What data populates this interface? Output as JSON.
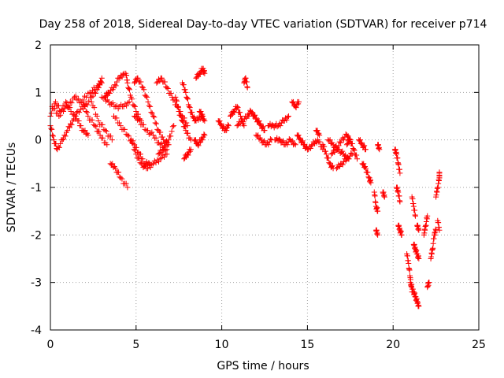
{
  "chart_data": {
    "type": "scatter",
    "title": "Day 258 of 2018, Sidereal Day-to-day VTEC variation (SDTVAR) for receiver p714",
    "xlabel": "GPS time / hours",
    "ylabel": "SDTVAR / TECUs",
    "xlim": [
      0,
      25
    ],
    "ylim": [
      -4,
      2
    ],
    "xticks": [
      0,
      5,
      10,
      15,
      20,
      25
    ],
    "yticks": [
      -4,
      -3,
      -2,
      -1,
      0,
      1,
      2
    ],
    "grid": true,
    "marker": "+",
    "color": "#ff0000",
    "series": [
      {
        "name": "p714",
        "tracks": [
          [
            [
              0.0,
              0.5
            ],
            [
              0.3,
              0.8
            ],
            [
              0.6,
              0.6
            ],
            [
              1.0,
              0.7
            ],
            [
              1.4,
              0.9
            ],
            [
              1.8,
              0.8
            ],
            [
              2.3,
              1.0
            ],
            [
              2.7,
              1.1
            ],
            [
              3.0,
              1.2
            ]
          ],
          [
            [
              0.0,
              0.3
            ],
            [
              0.2,
              0.0
            ],
            [
              0.4,
              -0.2
            ],
            [
              0.7,
              0.0
            ],
            [
              1.0,
              0.2
            ],
            [
              1.3,
              0.4
            ],
            [
              1.6,
              0.6
            ],
            [
              2.0,
              0.7
            ],
            [
              2.4,
              0.9
            ],
            [
              2.8,
              1.1
            ],
            [
              3.0,
              1.3
            ]
          ],
          [
            [
              0.1,
              0.7
            ],
            [
              0.5,
              0.5
            ],
            [
              0.9,
              0.8
            ],
            [
              1.2,
              0.6
            ],
            [
              1.6,
              0.4
            ],
            [
              1.9,
              0.2
            ],
            [
              2.2,
              0.1
            ]
          ],
          [
            [
              1.9,
              0.8
            ],
            [
              2.2,
              0.5
            ],
            [
              2.6,
              0.3
            ],
            [
              2.9,
              0.1
            ],
            [
              3.3,
              -0.1
            ]
          ],
          [
            [
              2.4,
              0.8
            ],
            [
              2.8,
              0.4
            ],
            [
              3.2,
              0.2
            ],
            [
              3.6,
              0.0
            ]
          ],
          [
            [
              3.0,
              0.9
            ],
            [
              3.4,
              0.8
            ],
            [
              3.8,
              0.7
            ],
            [
              4.2,
              0.7
            ],
            [
              4.6,
              0.8
            ]
          ],
          [
            [
              3.2,
              0.9
            ],
            [
              3.4,
              1.0
            ],
            [
              3.7,
              1.1
            ],
            [
              4.0,
              1.3
            ],
            [
              4.3,
              1.4
            ]
          ],
          [
            [
              3.5,
              -0.5
            ],
            [
              3.8,
              -0.6
            ],
            [
              4.1,
              -0.8
            ],
            [
              4.5,
              -1.0
            ]
          ],
          [
            [
              3.7,
              0.5
            ],
            [
              4.1,
              0.3
            ],
            [
              4.5,
              0.1
            ],
            [
              4.9,
              -0.1
            ],
            [
              5.2,
              -0.3
            ],
            [
              5.5,
              -0.5
            ],
            [
              5.8,
              -0.5
            ]
          ],
          [
            [
              4.4,
              1.4
            ],
            [
              4.5,
              1.2
            ],
            [
              4.7,
              0.9
            ],
            [
              5.0,
              0.6
            ],
            [
              5.3,
              0.4
            ]
          ],
          [
            [
              4.7,
              0.0
            ],
            [
              5.0,
              -0.3
            ],
            [
              5.3,
              -0.5
            ],
            [
              5.6,
              -0.6
            ],
            [
              6.0,
              -0.5
            ],
            [
              6.4,
              -0.4
            ],
            [
              6.8,
              -0.3
            ]
          ],
          [
            [
              4.9,
              1.2
            ],
            [
              5.1,
              1.3
            ],
            [
              5.4,
              1.1
            ],
            [
              5.7,
              0.8
            ],
            [
              6.0,
              0.5
            ],
            [
              6.3,
              0.2
            ],
            [
              6.6,
              0.0
            ],
            [
              6.9,
              -0.1
            ]
          ],
          [
            [
              4.9,
              0.5
            ],
            [
              5.2,
              0.4
            ],
            [
              5.6,
              0.2
            ],
            [
              6.0,
              0.1
            ],
            [
              6.4,
              -0.1
            ],
            [
              6.8,
              -0.2
            ]
          ],
          [
            [
              6.2,
              1.2
            ],
            [
              6.5,
              1.3
            ],
            [
              6.8,
              1.1
            ],
            [
              7.1,
              0.9
            ],
            [
              7.4,
              0.7
            ],
            [
              7.7,
              0.5
            ],
            [
              8.0,
              0.3
            ]
          ],
          [
            [
              6.3,
              -0.3
            ],
            [
              6.6,
              -0.2
            ],
            [
              6.9,
              0.0
            ],
            [
              7.2,
              0.3
            ]
          ],
          [
            [
              7.3,
              0.9
            ],
            [
              7.5,
              0.6
            ],
            [
              7.7,
              0.4
            ],
            [
              7.9,
              0.2
            ],
            [
              8.2,
              0.0
            ]
          ],
          [
            [
              7.7,
              1.2
            ],
            [
              7.9,
              1.0
            ],
            [
              8.1,
              0.7
            ],
            [
              8.3,
              0.5
            ],
            [
              8.5,
              0.4
            ],
            [
              8.8,
              0.5
            ],
            [
              9.0,
              0.4
            ]
          ],
          [
            [
              7.8,
              -0.4
            ],
            [
              8.0,
              -0.3
            ],
            [
              8.2,
              -0.2
            ]
          ],
          [
            [
              8.5,
              1.3
            ],
            [
              8.7,
              1.4
            ],
            [
              8.9,
              1.5
            ],
            [
              9.0,
              1.4
            ]
          ],
          [
            [
              8.4,
              0.0
            ],
            [
              8.6,
              -0.1
            ],
            [
              8.8,
              0.0
            ],
            [
              9.0,
              0.1
            ]
          ],
          [
            [
              8.7,
              0.6
            ],
            [
              8.9,
              0.5
            ]
          ],
          [
            [
              9.8,
              0.4
            ],
            [
              10.0,
              0.3
            ],
            [
              10.2,
              0.2
            ],
            [
              10.4,
              0.3
            ]
          ],
          [
            [
              10.5,
              0.5
            ],
            [
              10.7,
              0.6
            ],
            [
              10.9,
              0.7
            ],
            [
              11.1,
              0.5
            ],
            [
              11.3,
              0.3
            ]
          ],
          [
            [
              10.9,
              0.3
            ],
            [
              11.2,
              0.4
            ],
            [
              11.5,
              0.5
            ],
            [
              11.7,
              0.6
            ],
            [
              11.9,
              0.5
            ],
            [
              12.1,
              0.4
            ],
            [
              12.3,
              0.3
            ],
            [
              12.5,
              0.2
            ]
          ],
          [
            [
              11.3,
              1.2
            ],
            [
              11.4,
              1.3
            ],
            [
              11.5,
              1.1
            ]
          ],
          [
            [
              12.0,
              0.1
            ],
            [
              12.3,
              0.0
            ],
            [
              12.6,
              -0.1
            ],
            [
              12.9,
              0.0
            ]
          ],
          [
            [
              12.7,
              0.3
            ],
            [
              13.0,
              0.3
            ],
            [
              13.3,
              0.3
            ],
            [
              13.6,
              0.4
            ],
            [
              13.9,
              0.5
            ]
          ],
          [
            [
              13.1,
              0.0
            ],
            [
              13.4,
              0.0
            ],
            [
              13.7,
              -0.1
            ],
            [
              14.0,
              0.0
            ],
            [
              14.3,
              -0.1
            ]
          ],
          [
            [
              14.1,
              0.8
            ],
            [
              14.3,
              0.7
            ],
            [
              14.5,
              0.8
            ]
          ],
          [
            [
              14.4,
              0.1
            ],
            [
              14.6,
              0.0
            ],
            [
              14.8,
              -0.1
            ],
            [
              15.0,
              -0.2
            ],
            [
              15.3,
              -0.1
            ],
            [
              15.6,
              0.0
            ],
            [
              15.9,
              -0.2
            ]
          ],
          [
            [
              15.5,
              0.2
            ],
            [
              15.7,
              0.1
            ]
          ],
          [
            [
              15.9,
              -0.1
            ],
            [
              16.1,
              -0.3
            ],
            [
              16.3,
              -0.5
            ],
            [
              16.5,
              -0.6
            ]
          ],
          [
            [
              16.2,
              0.0
            ],
            [
              16.5,
              -0.1
            ],
            [
              16.8,
              -0.2
            ],
            [
              17.1,
              -0.3
            ],
            [
              17.4,
              -0.4
            ]
          ],
          [
            [
              16.4,
              -0.3
            ],
            [
              16.7,
              -0.2
            ],
            [
              17.0,
              0.0
            ],
            [
              17.3,
              0.1
            ],
            [
              17.5,
              0.0
            ]
          ],
          [
            [
              16.7,
              -0.6
            ],
            [
              17.0,
              -0.5
            ],
            [
              17.3,
              -0.4
            ],
            [
              17.6,
              -0.3
            ]
          ],
          [
            [
              17.3,
              -0.1
            ],
            [
              17.5,
              0.0
            ],
            [
              17.7,
              -0.2
            ],
            [
              17.9,
              -0.4
            ]
          ],
          [
            [
              18.0,
              0.0
            ],
            [
              18.2,
              -0.1
            ],
            [
              18.4,
              -0.2
            ]
          ],
          [
            [
              18.2,
              -0.5
            ],
            [
              18.4,
              -0.6
            ],
            [
              18.6,
              -0.8
            ],
            [
              18.7,
              -0.9
            ]
          ],
          [
            [
              18.9,
              -1.1
            ],
            [
              19.0,
              -1.4
            ],
            [
              19.1,
              -1.5
            ]
          ],
          [
            [
              19.0,
              -1.9
            ],
            [
              19.1,
              -2.0
            ]
          ],
          [
            [
              19.1,
              -0.1
            ],
            [
              19.2,
              -0.2
            ]
          ],
          [
            [
              19.4,
              -1.1
            ],
            [
              19.5,
              -1.2
            ]
          ],
          [
            [
              20.1,
              -0.2
            ],
            [
              20.2,
              -0.3
            ],
            [
              20.3,
              -0.5
            ],
            [
              20.4,
              -0.7
            ]
          ],
          [
            [
              20.2,
              -1.0
            ],
            [
              20.3,
              -1.1
            ],
            [
              20.4,
              -1.3
            ]
          ],
          [
            [
              20.3,
              -1.8
            ],
            [
              20.4,
              -1.9
            ],
            [
              20.5,
              -2.0
            ]
          ],
          [
            [
              20.8,
              -2.4
            ],
            [
              20.9,
              -2.6
            ],
            [
              21.0,
              -2.9
            ],
            [
              21.1,
              -3.2
            ]
          ],
          [
            [
              21.0,
              -3.0
            ],
            [
              21.2,
              -3.2
            ],
            [
              21.3,
              -3.3
            ],
            [
              21.4,
              -3.4
            ],
            [
              21.5,
              -3.5
            ]
          ],
          [
            [
              21.1,
              -1.2
            ],
            [
              21.2,
              -1.4
            ],
            [
              21.3,
              -1.6
            ]
          ],
          [
            [
              21.2,
              -2.2
            ],
            [
              21.3,
              -2.3
            ],
            [
              21.4,
              -2.4
            ],
            [
              21.5,
              -2.5
            ]
          ],
          [
            [
              21.4,
              -1.8
            ],
            [
              21.5,
              -1.9
            ]
          ],
          [
            [
              21.8,
              -2.0
            ],
            [
              21.9,
              -1.8
            ],
            [
              22.0,
              -1.6
            ]
          ],
          [
            [
              22.0,
              -3.1
            ],
            [
              22.1,
              -3.0
            ]
          ],
          [
            [
              22.2,
              -2.5
            ],
            [
              22.3,
              -2.3
            ],
            [
              22.4,
              -2.0
            ],
            [
              22.5,
              -1.9
            ]
          ],
          [
            [
              22.5,
              -1.2
            ],
            [
              22.6,
              -1.0
            ],
            [
              22.7,
              -0.8
            ],
            [
              22.7,
              -0.7
            ]
          ],
          [
            [
              22.6,
              -1.7
            ],
            [
              22.7,
              -1.9
            ]
          ]
        ]
      }
    ]
  }
}
